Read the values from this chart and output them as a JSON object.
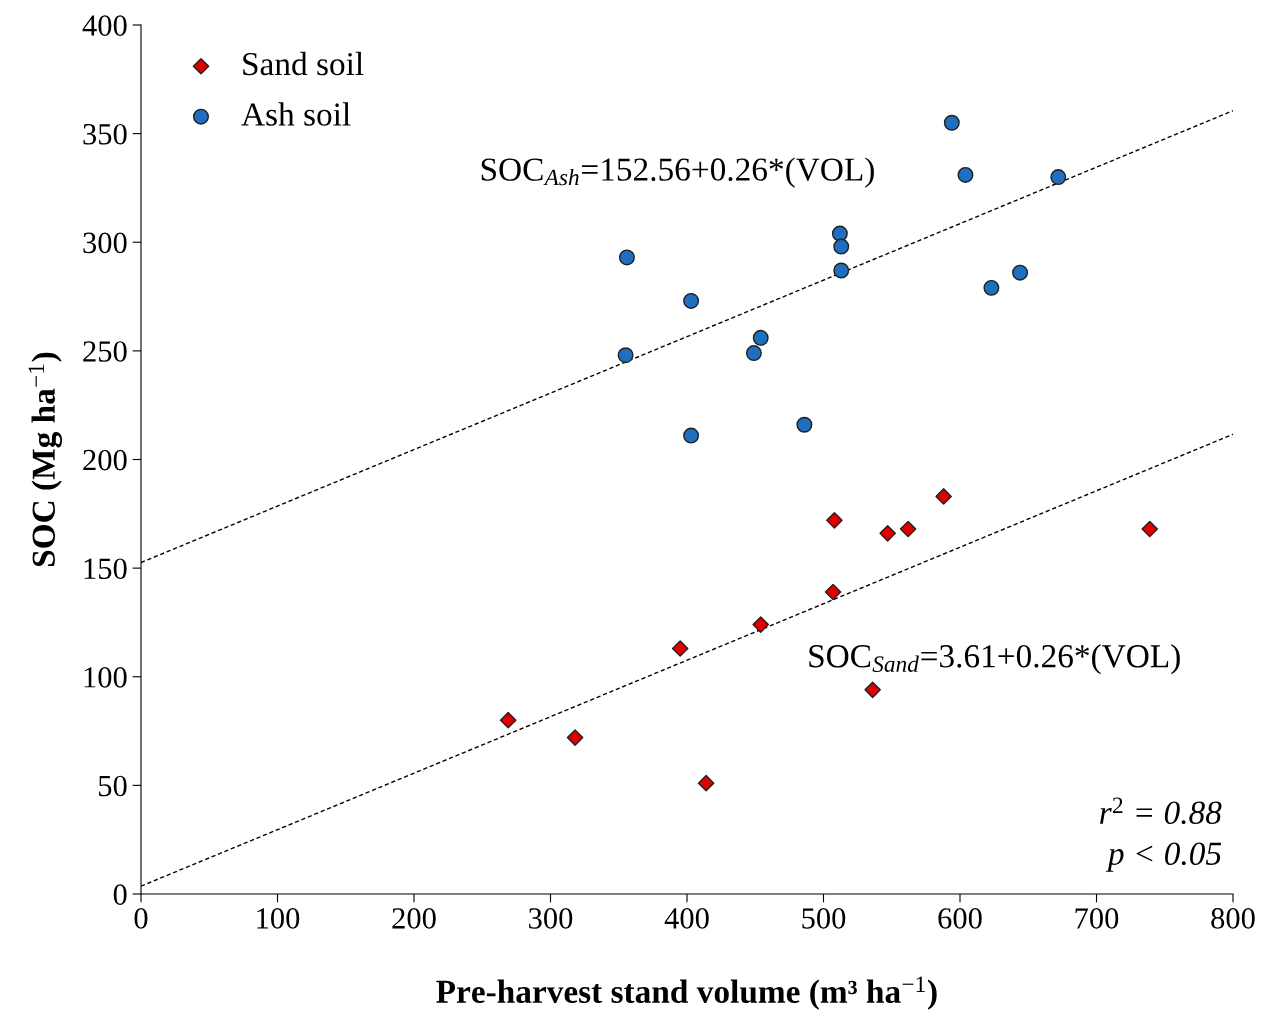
{
  "chart_data": {
    "type": "scatter",
    "xlabel": "Pre-harvest stand volume (m³ ha$^{−1}$)",
    "ylabel": "SOC (Mg ha$^{−1}$)",
    "xlim": [
      0,
      800
    ],
    "xticks": [
      0,
      100,
      200,
      300,
      400,
      500,
      600,
      700,
      800
    ],
    "ylim": [
      0,
      400
    ],
    "yticks": [
      0,
      50,
      100,
      150,
      200,
      250,
      300,
      350,
      400
    ],
    "grid": false,
    "legend": "top left",
    "series": [
      {
        "name": "Sand soil",
        "marker": "diamond",
        "color": "#e00000",
        "x": [
          269,
          318,
          395,
          414,
          454,
          507,
          508,
          536,
          547,
          562,
          588,
          739
        ],
        "values": [
          80,
          72,
          113,
          51,
          124,
          139,
          172,
          94,
          166,
          168,
          183,
          168
        ]
      },
      {
        "name": "Ash soil",
        "marker": "circle",
        "color": "#1f6fc0",
        "x": [
          356,
          355,
          403,
          403,
          449,
          454,
          486,
          512,
          513,
          513,
          594,
          604,
          623,
          644,
          672
        ],
        "values": [
          293,
          248,
          273,
          211,
          249,
          256,
          216,
          304,
          298,
          287,
          355,
          331,
          279,
          286,
          330
        ]
      },
      {
        "type": "line",
        "line_style": "dashed",
        "color": "#000000",
        "x": [
          0,
          800
        ],
        "values": [
          152.56,
          360.56
        ]
      },
      {
        "type": "line",
        "line_style": "dashed",
        "color": "#000000",
        "x": [
          0,
          800
        ],
        "values": [
          3.61,
          211.61
        ]
      }
    ],
    "annotations": [
      "SOC$_{Ash}$=152.56+0.26*(VOL)",
      "SOC$_{Sand}$=3.61+0.26*(VOL)",
      "r$^{2}$ = 0.88",
      "p < 0.05"
    ]
  }
}
